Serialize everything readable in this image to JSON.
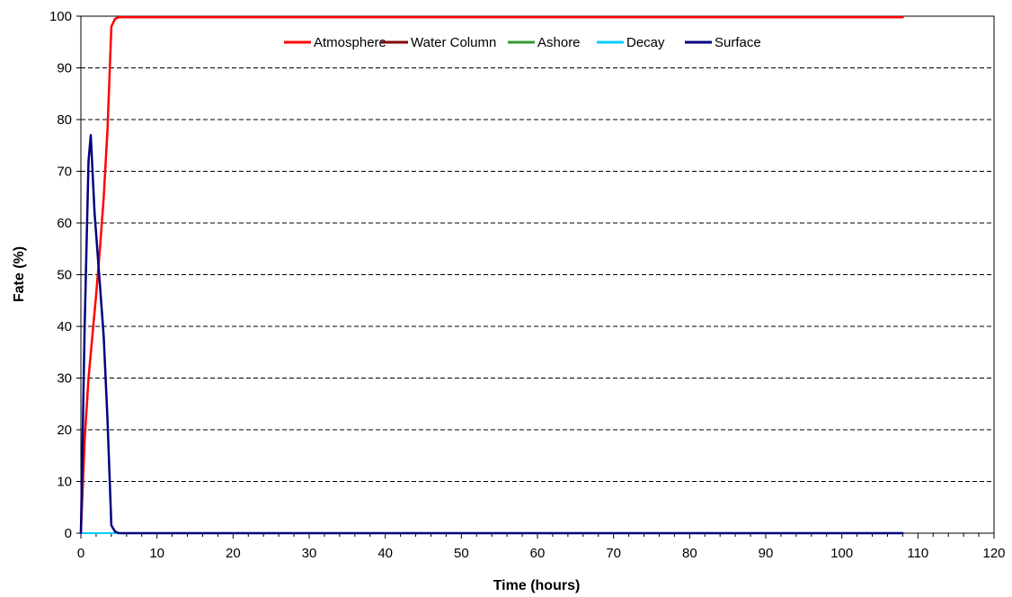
{
  "chart_data": {
    "type": "line",
    "title": "",
    "xlabel": "Time (hours)",
    "ylabel": "Fate (%)",
    "xlim": [
      0,
      120
    ],
    "ylim": [
      0,
      100
    ],
    "x_ticks": [
      "0",
      "10",
      "20",
      "30",
      "40",
      "50",
      "60",
      "70",
      "80",
      "90",
      "100",
      "110",
      "120"
    ],
    "y_ticks": [
      "0",
      "10",
      "20",
      "30",
      "40",
      "50",
      "60",
      "70",
      "80",
      "90",
      "100"
    ],
    "grid": "horizontal dashed",
    "legend_placement": "top",
    "series": [
      {
        "name": "Atmosphere",
        "color": "#ff0000",
        "x": [
          0,
          0.5,
          1,
          1.5,
          2,
          2.5,
          3,
          3.5,
          4,
          4.5,
          5,
          6,
          108
        ],
        "y": [
          0,
          18,
          30,
          38,
          46,
          55,
          65,
          78,
          98,
          99.5,
          99.8,
          99.8,
          99.8
        ]
      },
      {
        "name": "Water Column",
        "color": "#800000",
        "x": [
          0,
          108
        ],
        "y": [
          0,
          0
        ]
      },
      {
        "name": "Ashore",
        "color": "#339933",
        "x": [
          0,
          108
        ],
        "y": [
          0,
          0
        ]
      },
      {
        "name": "Decay",
        "color": "#00ccff",
        "x": [
          0,
          108
        ],
        "y": [
          0,
          0
        ]
      },
      {
        "name": "Surface",
        "color": "#000080",
        "x": [
          0,
          0.5,
          1,
          1.3,
          1.8,
          2.5,
          3.0,
          3.5,
          4.0,
          4.5,
          5.0,
          108
        ],
        "y": [
          0,
          40,
          72,
          77,
          62,
          48,
          38,
          22,
          1.5,
          0.3,
          0,
          0
        ]
      }
    ]
  }
}
